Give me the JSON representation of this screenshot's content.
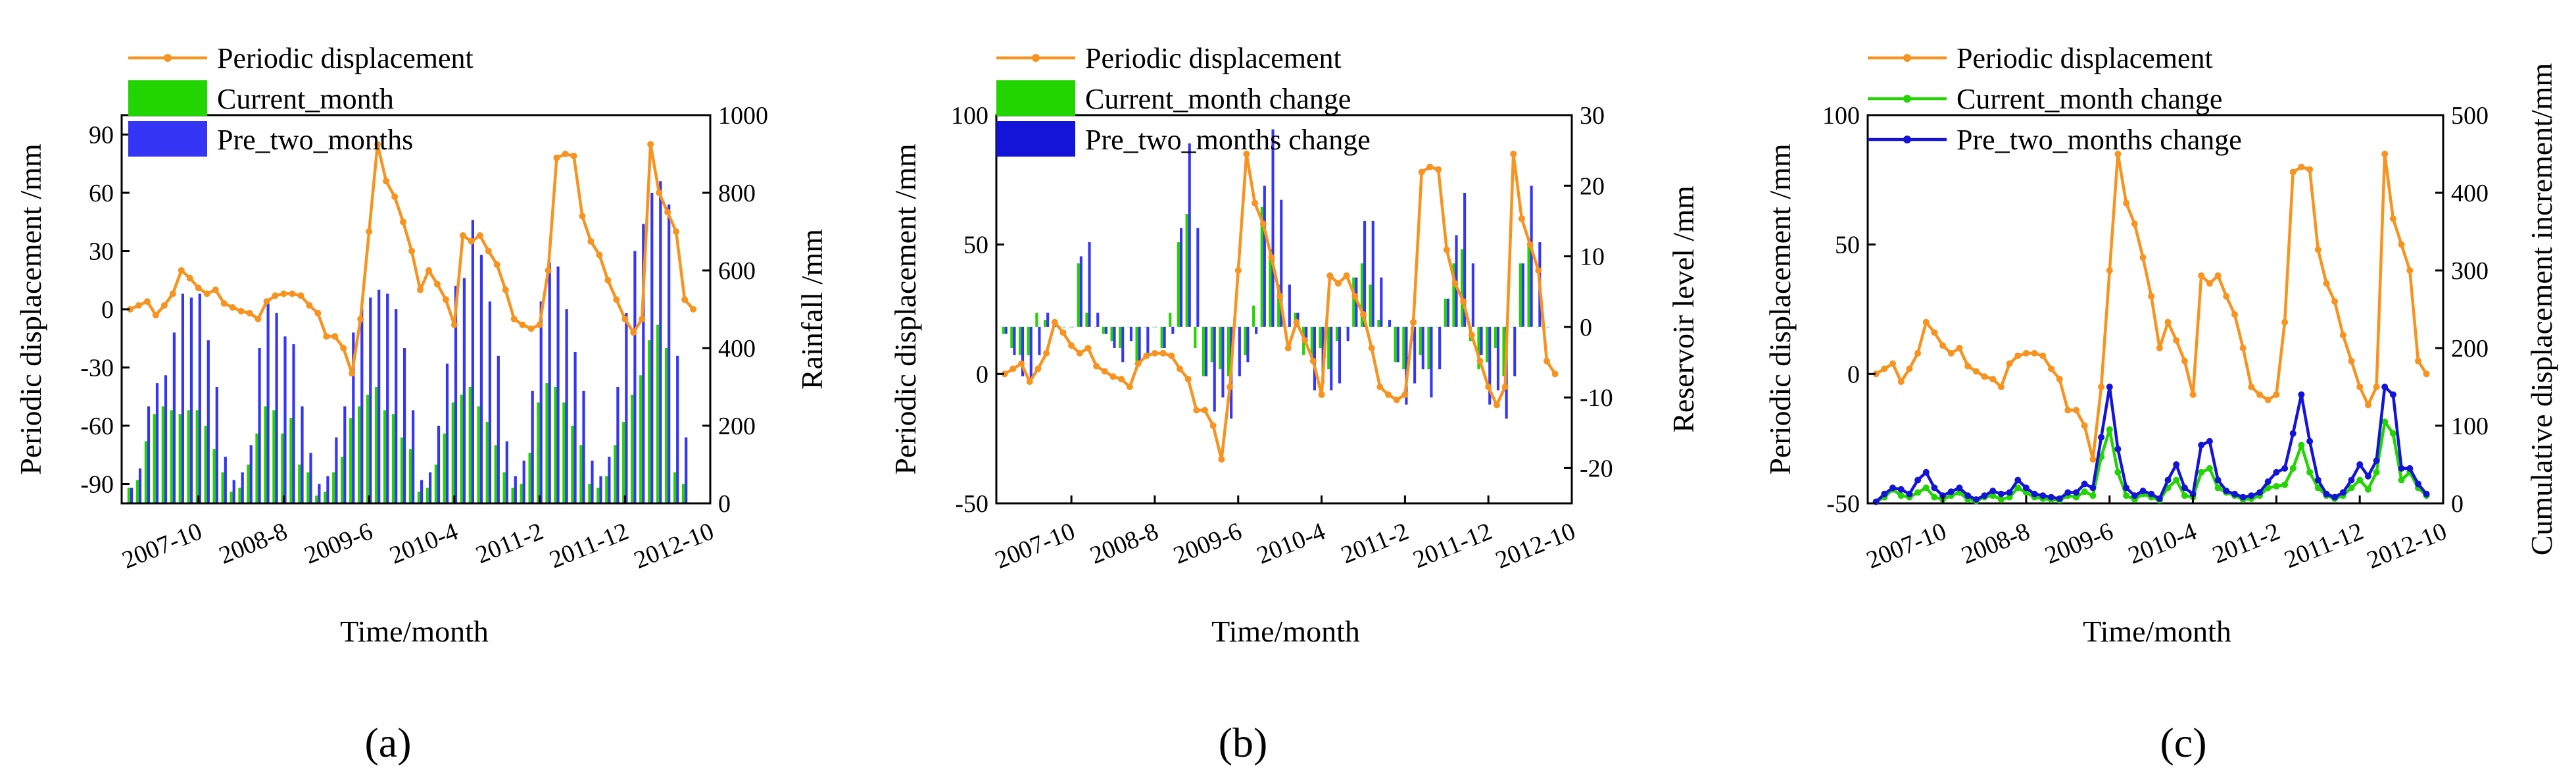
{
  "figure": {
    "captions": [
      "(a)",
      "(b)",
      "(c)"
    ],
    "colors": {
      "orange": "#F7931E",
      "green": "#22D400",
      "blue": "#3535F5",
      "darkblue": "#1414D8",
      "teal": "#1B8A7C"
    }
  },
  "chart_data": [
    {
      "type": "bar",
      "panel": "a",
      "caption": "(a)",
      "xlabel": "Time/month",
      "ylabel": "Periodic displacement /mm",
      "y2label": "Rainfall /mm",
      "ylim": [
        -100,
        100
      ],
      "yticks": [
        -90,
        -60,
        -30,
        0,
        30,
        60,
        90
      ],
      "y2lim": [
        0,
        1000
      ],
      "y2ticks": [
        0,
        200,
        400,
        600,
        800,
        1000
      ],
      "xlim": [
        0,
        69
      ],
      "xticks": [
        {
          "label": "2007-10",
          "x": 9
        },
        {
          "label": "2008-8",
          "x": 19
        },
        {
          "label": "2009-6",
          "x": 29
        },
        {
          "label": "2010-4",
          "x": 39
        },
        {
          "label": "2011-2",
          "x": 49
        },
        {
          "label": "2011-12",
          "x": 59
        },
        {
          "label": "2012-10",
          "x": 69
        }
      ],
      "legend": [
        "Periodic displacement",
        "Current_month",
        "Pre_two_months"
      ],
      "series": [
        {
          "name": "Periodic displacement",
          "kind": "line",
          "axis": "left",
          "values": [
            0,
            2,
            4,
            -3,
            2,
            8,
            20,
            16,
            11,
            8,
            10,
            3,
            1,
            -1,
            -2,
            -5,
            4,
            7,
            8,
            8,
            7,
            2,
            -2,
            -14,
            -14,
            -20,
            -33,
            -5,
            40,
            85,
            66,
            58,
            45,
            30,
            10,
            20,
            13,
            5,
            -8,
            38,
            35,
            38,
            30,
            23,
            10,
            -5,
            -8,
            -10,
            -8,
            20,
            78,
            80,
            79,
            48,
            35,
            28,
            15,
            5,
            -5,
            -12,
            -5,
            85,
            60,
            50,
            40,
            5,
            0
          ]
        },
        {
          "name": "Current_month",
          "kind": "bar",
          "axis": "right",
          "values": [
            40,
            60,
            160,
            230,
            250,
            240,
            230,
            240,
            240,
            200,
            140,
            80,
            30,
            40,
            100,
            180,
            250,
            240,
            180,
            220,
            100,
            80,
            20,
            30,
            80,
            120,
            220,
            250,
            280,
            300,
            240,
            230,
            170,
            140,
            30,
            40,
            100,
            180,
            260,
            280,
            300,
            250,
            210,
            150,
            80,
            40,
            50,
            130,
            260,
            310,
            300,
            260,
            200,
            150,
            50,
            40,
            70,
            150,
            210,
            280,
            330,
            420,
            460,
            400,
            80,
            50
          ]
        },
        {
          "name": "Pre_two_months",
          "kind": "bar",
          "axis": "right",
          "values": [
            40,
            90,
            250,
            310,
            330,
            440,
            540,
            530,
            540,
            420,
            300,
            120,
            60,
            80,
            150,
            400,
            520,
            490,
            430,
            410,
            250,
            130,
            50,
            70,
            170,
            250,
            440,
            500,
            530,
            550,
            540,
            500,
            400,
            240,
            60,
            80,
            200,
            360,
            560,
            580,
            730,
            640,
            520,
            380,
            160,
            70,
            110,
            290,
            520,
            620,
            610,
            500,
            390,
            290,
            110,
            70,
            120,
            300,
            490,
            650,
            720,
            800,
            830,
            770,
            380,
            170
          ]
        }
      ]
    },
    {
      "type": "bar",
      "panel": "b",
      "caption": "(b)",
      "xlabel": "Time/month",
      "ylabel": "Periodic displacement /mm",
      "y2label": "Reservoir level /mm",
      "ylim": [
        -50,
        100
      ],
      "yticks": [
        -50,
        0,
        50,
        100
      ],
      "y2lim": [
        -25,
        30
      ],
      "y2ticks": [
        -20,
        -10,
        0,
        10,
        20,
        30
      ],
      "xlim": [
        0,
        69
      ],
      "xticks": [
        {
          "label": "2007-10",
          "x": 9
        },
        {
          "label": "2008-8",
          "x": 19
        },
        {
          "label": "2009-6",
          "x": 29
        },
        {
          "label": "2010-4",
          "x": 39
        },
        {
          "label": "2011-2",
          "x": 49
        },
        {
          "label": "2011-12",
          "x": 59
        },
        {
          "label": "2012-10",
          "x": 69
        }
      ],
      "legend": [
        "Periodic displacement",
        "Current_month change",
        "Pre_two_months change"
      ],
      "series": [
        {
          "name": "Periodic displacement",
          "kind": "line",
          "axis": "left",
          "values": [
            0,
            2,
            4,
            -3,
            2,
            8,
            20,
            16,
            11,
            8,
            10,
            3,
            1,
            -1,
            -2,
            -5,
            4,
            7,
            8,
            8,
            7,
            2,
            -2,
            -14,
            -14,
            -20,
            -33,
            -5,
            40,
            85,
            66,
            58,
            45,
            30,
            10,
            20,
            13,
            5,
            -8,
            38,
            35,
            38,
            30,
            23,
            10,
            -5,
            -8,
            -10,
            -8,
            20,
            78,
            80,
            79,
            48,
            35,
            28,
            15,
            5,
            -5,
            -12,
            -5,
            85,
            60,
            50,
            40,
            5,
            0
          ]
        },
        {
          "name": "Current_month change",
          "kind": "bar",
          "axis": "right",
          "values": [
            -1,
            -3,
            -4,
            -4,
            2,
            1,
            0,
            0,
            0,
            9,
            2,
            0,
            -1,
            -2,
            -3,
            0,
            -5,
            0,
            0,
            -3,
            2,
            12,
            16,
            -3,
            -7,
            -5,
            -6,
            -7,
            0,
            -4,
            3,
            17,
            11,
            6,
            0,
            2,
            -4,
            -5,
            -3,
            -6,
            -2,
            0,
            7,
            9,
            6,
            1,
            0,
            -5,
            -6,
            -2,
            -4,
            -6,
            0,
            4,
            9,
            11,
            -2,
            -6,
            -5,
            -3,
            -7,
            0,
            9,
            12,
            0,
            0
          ]
        },
        {
          "name": "Pre_two_months change",
          "kind": "bar",
          "axis": "right",
          "values": [
            -1,
            -4,
            -7,
            -8,
            -4,
            2,
            1,
            0,
            0,
            10,
            12,
            2,
            -1,
            -3,
            -5,
            -2,
            -5,
            -4,
            0,
            -3,
            -1,
            14,
            26,
            14,
            -7,
            -12,
            -10,
            -13,
            -7,
            -5,
            -1,
            20,
            28,
            18,
            6,
            2,
            -2,
            -9,
            -8,
            -9,
            -8,
            -2,
            7,
            15,
            15,
            7,
            1,
            -5,
            -11,
            -8,
            -6,
            -10,
            -6,
            4,
            13,
            19,
            9,
            -4,
            -11,
            -9,
            -13,
            -7,
            9,
            20,
            12,
            0
          ]
        }
      ]
    },
    {
      "type": "line",
      "panel": "c",
      "caption": "(c)",
      "xlabel": "Time/month",
      "ylabel": "Periodic displacement /mm",
      "y2label": "Cumulative displacement increment/mm",
      "ylim": [
        -50,
        100
      ],
      "yticks": [
        -50,
        0,
        50,
        100
      ],
      "y2lim": [
        0,
        500
      ],
      "y2ticks": [
        0,
        100,
        200,
        300,
        400,
        500
      ],
      "xlim": [
        0,
        69
      ],
      "xticks": [
        {
          "label": "2007-10",
          "x": 9
        },
        {
          "label": "2008-8",
          "x": 19
        },
        {
          "label": "2009-6",
          "x": 29
        },
        {
          "label": "2010-4",
          "x": 39
        },
        {
          "label": "2011-2",
          "x": 49
        },
        {
          "label": "2011-12",
          "x": 59
        },
        {
          "label": "2012-10",
          "x": 69
        }
      ],
      "legend": [
        "Periodic displacement",
        "Current_month change",
        "Pre_two_months change"
      ],
      "series": [
        {
          "name": "Periodic displacement",
          "kind": "line",
          "axis": "left",
          "values": [
            0,
            2,
            4,
            -3,
            2,
            8,
            20,
            16,
            11,
            8,
            10,
            3,
            1,
            -1,
            -2,
            -5,
            4,
            7,
            8,
            8,
            7,
            2,
            -2,
            -14,
            -14,
            -20,
            -33,
            -5,
            40,
            85,
            66,
            58,
            45,
            30,
            10,
            20,
            13,
            5,
            -8,
            38,
            35,
            38,
            30,
            23,
            10,
            -5,
            -8,
            -10,
            -8,
            20,
            78,
            80,
            79,
            48,
            35,
            28,
            15,
            5,
            -5,
            -12,
            -5,
            85,
            60,
            50,
            40,
            5,
            0
          ]
        },
        {
          "name": "Current_month change",
          "kind": "line",
          "axis": "right",
          "values": [
            2,
            8,
            18,
            10,
            8,
            14,
            20,
            8,
            5,
            10,
            14,
            5,
            3,
            8,
            10,
            5,
            8,
            20,
            14,
            8,
            6,
            5,
            4,
            10,
            8,
            15,
            10,
            60,
            95,
            40,
            10,
            5,
            12,
            8,
            4,
            20,
            30,
            10,
            8,
            40,
            45,
            20,
            14,
            10,
            5,
            6,
            10,
            20,
            22,
            24,
            45,
            75,
            40,
            20,
            10,
            6,
            10,
            20,
            30,
            18,
            40,
            105,
            90,
            30,
            40,
            20,
            10
          ]
        },
        {
          "name": "Pre_two_months change",
          "kind": "line",
          "axis": "right",
          "values": [
            2,
            12,
            20,
            18,
            12,
            30,
            40,
            20,
            10,
            15,
            20,
            10,
            5,
            10,
            16,
            12,
            14,
            30,
            20,
            12,
            10,
            8,
            6,
            14,
            14,
            25,
            20,
            85,
            150,
            70,
            20,
            10,
            16,
            12,
            6,
            30,
            50,
            20,
            12,
            75,
            80,
            30,
            16,
            12,
            8,
            10,
            14,
            28,
            40,
            45,
            90,
            140,
            80,
            30,
            12,
            8,
            14,
            30,
            50,
            35,
            55,
            150,
            140,
            45,
            45,
            25,
            12
          ]
        }
      ]
    }
  ]
}
